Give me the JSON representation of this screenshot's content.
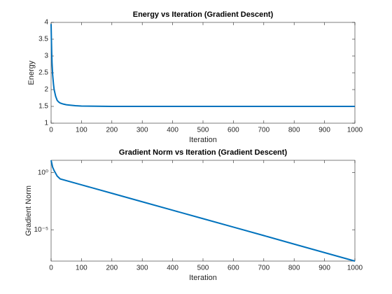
{
  "chart_data": [
    {
      "type": "line",
      "title": "Energy vs Iteration (Gradient Descent)",
      "xlabel": "Iteration",
      "ylabel": "Energy",
      "x": [
        0,
        1,
        2,
        3,
        5,
        8,
        10,
        15,
        20,
        25,
        30,
        40,
        50,
        60,
        80,
        100,
        150,
        200,
        300,
        400,
        500,
        600,
        700,
        800,
        900,
        1000
      ],
      "values": [
        3.95,
        3.5,
        3.1,
        2.8,
        2.45,
        2.15,
        2.0,
        1.8,
        1.68,
        1.63,
        1.6,
        1.57,
        1.55,
        1.54,
        1.52,
        1.51,
        1.505,
        1.5,
        1.5,
        1.5,
        1.5,
        1.5,
        1.5,
        1.5,
        1.5,
        1.5
      ],
      "color": "#0072bd",
      "xlim": [
        0,
        1000
      ],
      "ylim": [
        1,
        4
      ],
      "xticks": [
        0,
        100,
        200,
        300,
        400,
        500,
        600,
        700,
        800,
        900,
        1000
      ],
      "yticks": [
        1,
        1.5,
        2,
        2.5,
        3,
        3.5,
        4
      ],
      "log_y": false
    },
    {
      "type": "line",
      "title": "Gradient Norm vs Iteration (Gradient Descent)",
      "xlabel": "Iteration",
      "ylabel": "Gradient Norm",
      "x": [
        0,
        5,
        10,
        20,
        30,
        100,
        200,
        300,
        400,
        500,
        600,
        700,
        800,
        900,
        1000
      ],
      "values": [
        12,
        3,
        1.5,
        0.5,
        0.28,
        0.0853,
        0.0155,
        0.0028,
        0.00051,
        9.3e-05,
        1.7e-05,
        3.1e-06,
        5.5e-07,
        1e-07,
        1.8e-08
      ],
      "color": "#0072bd",
      "xlim": [
        0,
        1000
      ],
      "ylim": [
        1.8e-08,
        12
      ],
      "xticks": [
        0,
        100,
        200,
        300,
        400,
        500,
        600,
        700,
        800,
        900,
        1000
      ],
      "yticks": [
        {
          "value": 1,
          "label": "10⁰"
        },
        {
          "value": 1e-05,
          "label": "10⁻⁵"
        }
      ],
      "log_y": true
    }
  ]
}
